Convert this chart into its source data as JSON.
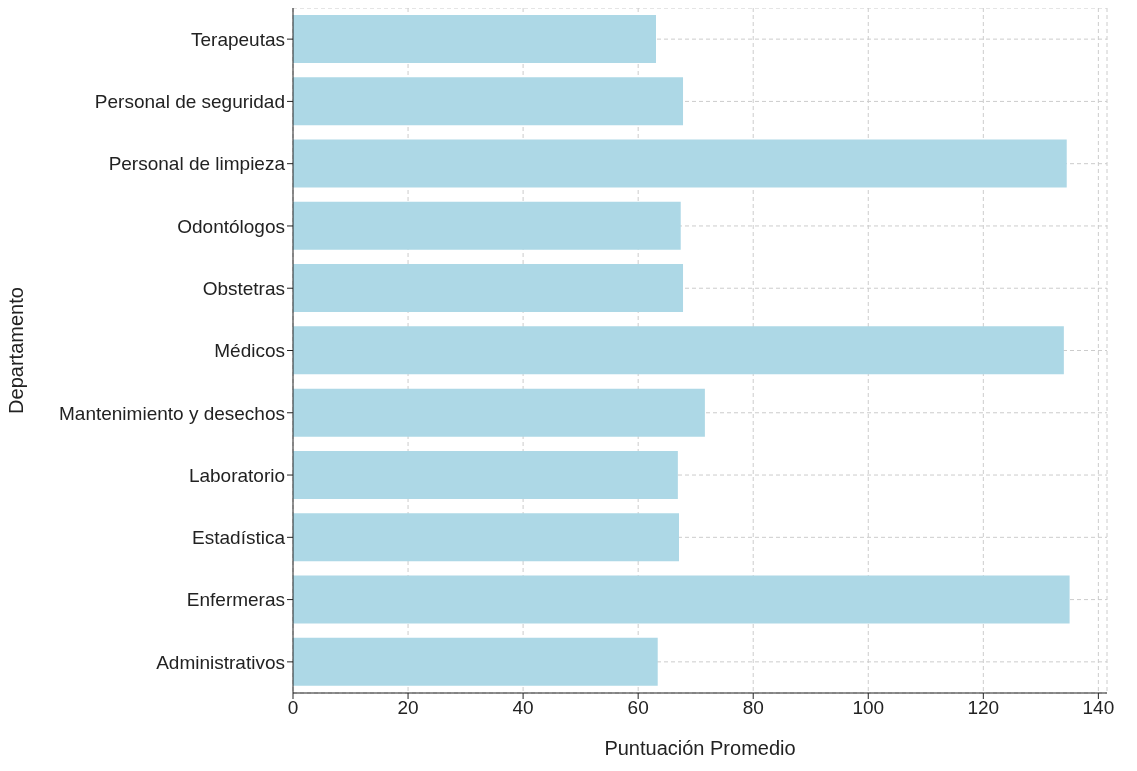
{
  "chart_data": {
    "type": "bar",
    "orientation": "horizontal",
    "xlabel": "Puntuación Promedio",
    "ylabel": "Departamento",
    "categories": [
      "Terapeutas",
      "Personal de seguridad",
      "Personal de limpieza",
      "Odontólogos",
      "Obstetras",
      "Médicos",
      "Mantenimiento y desechos",
      "Laboratorio",
      "Estadística",
      "Enfermeras",
      "Administrativos"
    ],
    "values": [
      63.1,
      67.8,
      134.5,
      67.4,
      67.8,
      134.0,
      71.6,
      66.9,
      67.1,
      135.0,
      63.4
    ],
    "color": "#add8e6",
    "xlim": [
      0,
      141.5
    ],
    "xticks": [
      0,
      20,
      40,
      60,
      80,
      100,
      120,
      140
    ],
    "grid": true
  }
}
